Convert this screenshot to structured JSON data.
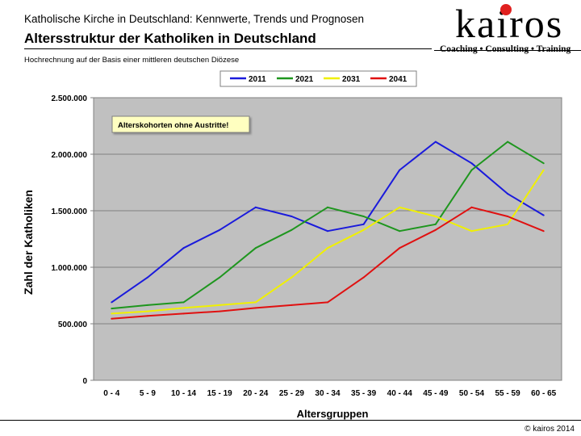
{
  "header": {
    "subtitle": "Katholische Kirche in Deutschland: Kennwerte, Trends und Prognosen",
    "title": "Altersstruktur der Katholiken in Deutschland",
    "note": "Hochrechnung auf der Basis einer mittleren deutschen Diözese"
  },
  "logo": {
    "text": "kairos",
    "tagline": "Coaching • Consulting • Training",
    "dot_color": "#e0201f"
  },
  "footer": {
    "copyright": "© kairos 2014"
  },
  "chart_data": {
    "type": "line",
    "xlabel": "Altersgruppen",
    "ylabel": "Zahl der Katholiken",
    "annotation": "Alterskohorten ohne Austritte!",
    "legend_position": "top",
    "grid": true,
    "ylim": [
      0,
      2500000
    ],
    "y_ticks": [
      0,
      500000,
      1000000,
      1500000,
      2000000,
      2500000
    ],
    "y_tick_labels": [
      "0",
      "500.000",
      "1.000.000",
      "1.500.000",
      "2.000.000",
      "2.500.000"
    ],
    "categories": [
      "0 - 4",
      "5 - 9",
      "10 - 14",
      "15 - 19",
      "20 - 24",
      "25 - 29",
      "30 - 34",
      "35 - 39",
      "40 - 44",
      "45 - 49",
      "50 - 54",
      "55 - 59",
      "60 - 65"
    ],
    "series": [
      {
        "name": "2011",
        "color": "#1a1adc",
        "values": [
          690000,
          910000,
          1170000,
          1330000,
          1530000,
          1450000,
          1320000,
          1380000,
          1860000,
          2110000,
          1920000,
          1650000,
          1460000
        ]
      },
      {
        "name": "2021",
        "color": "#1e961e",
        "values": [
          635000,
          665000,
          690000,
          910000,
          1170000,
          1330000,
          1530000,
          1450000,
          1320000,
          1380000,
          1860000,
          2110000,
          1920000
        ]
      },
      {
        "name": "2031",
        "color": "#f0f000",
        "values": [
          590000,
          610000,
          640000,
          665000,
          690000,
          910000,
          1170000,
          1330000,
          1530000,
          1450000,
          1320000,
          1380000,
          1860000
        ]
      },
      {
        "name": "2041",
        "color": "#e01010",
        "values": [
          545000,
          570000,
          590000,
          610000,
          640000,
          665000,
          690000,
          910000,
          1170000,
          1330000,
          1530000,
          1450000,
          1320000
        ]
      }
    ]
  }
}
